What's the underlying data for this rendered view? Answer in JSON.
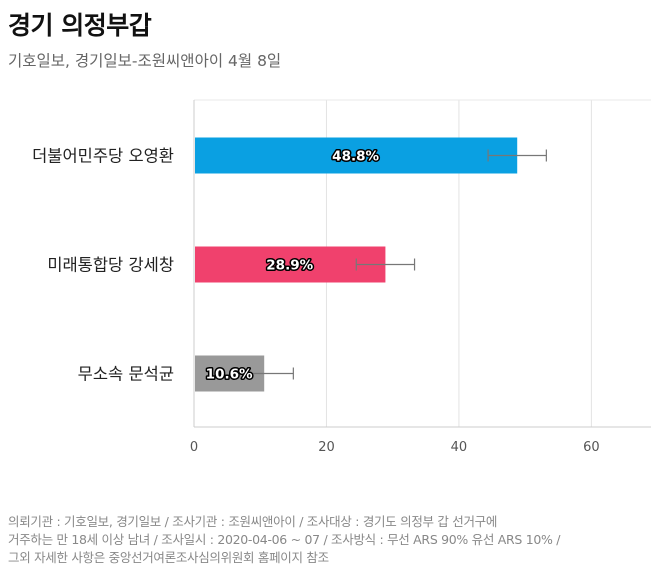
{
  "title": "경기 의정부갑",
  "subtitle": "기호일보, 경기일보-조원씨앤아이 4월 8일",
  "chart_data": {
    "type": "bar",
    "orientation": "horizontal",
    "categories": [
      "더불어민주당 오영환",
      "미래통합당 강세창",
      "무소속 문석균"
    ],
    "values": [
      48.8,
      28.9,
      10.6
    ],
    "value_labels": [
      "48.8%",
      "28.9%",
      "10.6%"
    ],
    "error_margin": 4.4,
    "colors": [
      "#0aa0e2",
      "#f0416d",
      "#999999"
    ],
    "xlim": [
      0,
      69
    ],
    "x_ticks": [
      0,
      20,
      40,
      60
    ],
    "x_tick_labels": [
      "0",
      "20",
      "40",
      "60"
    ],
    "grid": true
  },
  "footer": {
    "line1": "의뢰기관 : 기호일보, 경기일보 / 조사기관 : 조원씨앤아이 / 조사대상 : 경기도 의정부 갑 선거구에",
    "line2": "거주하는 만 18세 이상 남녀 / 조사일시 : 2020-04-06 ~ 07 / 조사방식 : 무선 ARS 90% 유선 ARS 10% /",
    "line3": "그외 자세한 사항은 중앙선거여론조사심의위원회 홈페이지 참조"
  }
}
